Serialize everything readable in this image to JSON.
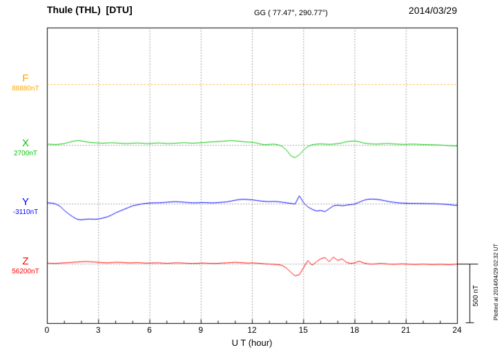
{
  "chart_data": {
    "type": "line",
    "title": "Thule (THL)  [DTU]",
    "subtitle": "GG ( 77.47°, 290.77°)",
    "date": "2014/03/29",
    "xlabel": "U T (hour)",
    "x_ticks": [
      0,
      3,
      6,
      9,
      12,
      15,
      18,
      21,
      24
    ],
    "x_range": [
      0,
      24
    ],
    "grid": "dotted vertical gridlines every 3 hours; dotted horizontal baseline per component",
    "legend_position": "left",
    "scale_bar": {
      "label": "500 nT",
      "nT": 500
    },
    "plotted_at": "Plotted at 2014/04/29 02:32 UT",
    "unit": "offsets in nT from each component baseline value",
    "components": [
      {
        "label": "F",
        "baseline_label": "88880nT",
        "baseline_nT": 88880,
        "color": "#ffa500",
        "dotted": true,
        "t_start": 0,
        "t_step": 24,
        "offsets_nT": [
          0,
          0
        ]
      },
      {
        "label": "X",
        "baseline_label": "2700nT",
        "baseline_nT": 2700,
        "color": "#00c800",
        "dotted": false,
        "t_start": 0,
        "t_step": 0.25,
        "offsets_nT": [
          10,
          8,
          6,
          10,
          15,
          25,
          35,
          40,
          38,
          30,
          25,
          22,
          20,
          18,
          20,
          22,
          20,
          18,
          15,
          15,
          18,
          20,
          18,
          15,
          15,
          18,
          20,
          18,
          15,
          15,
          18,
          20,
          22,
          20,
          18,
          20,
          22,
          25,
          28,
          30,
          32,
          35,
          38,
          40,
          38,
          35,
          30,
          28,
          25,
          20,
          10,
          5,
          8,
          10,
          5,
          -10,
          -40,
          -90,
          -105,
          -80,
          -40,
          -10,
          5,
          10,
          12,
          10,
          8,
          10,
          15,
          20,
          30,
          35,
          38,
          30,
          20,
          15,
          12,
          10,
          12,
          15,
          15,
          12,
          10,
          8,
          8,
          10,
          10,
          8,
          6,
          5,
          5,
          4,
          2,
          0,
          -3,
          -5,
          -5
        ]
      },
      {
        "label": "Y",
        "baseline_label": "-3110nT",
        "baseline_nT": -3110,
        "color": "#0000ff",
        "dotted": false,
        "t_start": 0,
        "t_step": 0.25,
        "offsets_nT": [
          10,
          8,
          0,
          -20,
          -55,
          -85,
          -110,
          -130,
          -135,
          -130,
          -128,
          -130,
          -128,
          -120,
          -110,
          -95,
          -75,
          -60,
          -45,
          -30,
          -15,
          -8,
          0,
          5,
          8,
          10,
          10,
          12,
          15,
          18,
          20,
          18,
          15,
          12,
          10,
          10,
          12,
          12,
          10,
          10,
          12,
          15,
          18,
          25,
          32,
          38,
          40,
          38,
          35,
          30,
          25,
          22,
          20,
          22,
          20,
          15,
          10,
          5,
          0,
          70,
          10,
          -25,
          -45,
          -60,
          -55,
          -65,
          -40,
          -15,
          -10,
          -15,
          -10,
          -5,
          0,
          15,
          30,
          40,
          42,
          40,
          35,
          28,
          20,
          15,
          10,
          8,
          6,
          5,
          5,
          4,
          4,
          3,
          3,
          2,
          0,
          -2,
          -5,
          -10,
          -12
        ]
      },
      {
        "label": "Z",
        "baseline_label": "56200nT",
        "baseline_nT": 56200,
        "color": "#ff0000",
        "dotted": false,
        "t_start": 0,
        "t_step": 0.25,
        "offsets_nT": [
          8,
          6,
          5,
          8,
          10,
          12,
          15,
          18,
          20,
          22,
          20,
          18,
          15,
          12,
          10,
          12,
          15,
          15,
          12,
          10,
          10,
          12,
          10,
          8,
          8,
          10,
          10,
          8,
          6,
          8,
          10,
          10,
          8,
          6,
          5,
          6,
          8,
          8,
          6,
          5,
          6,
          8,
          10,
          12,
          15,
          12,
          10,
          8,
          10,
          8,
          5,
          2,
          0,
          -2,
          -5,
          -12,
          -35,
          -70,
          -100,
          -90,
          -30,
          30,
          -10,
          20,
          45,
          55,
          20,
          60,
          30,
          45,
          15,
          5,
          10,
          25,
          10,
          2,
          0,
          2,
          5,
          3,
          0,
          -2,
          0,
          2,
          0,
          -2,
          -3,
          -2,
          0,
          -2,
          -4,
          -3,
          -2,
          -3,
          -5,
          -3,
          0
        ]
      }
    ]
  }
}
